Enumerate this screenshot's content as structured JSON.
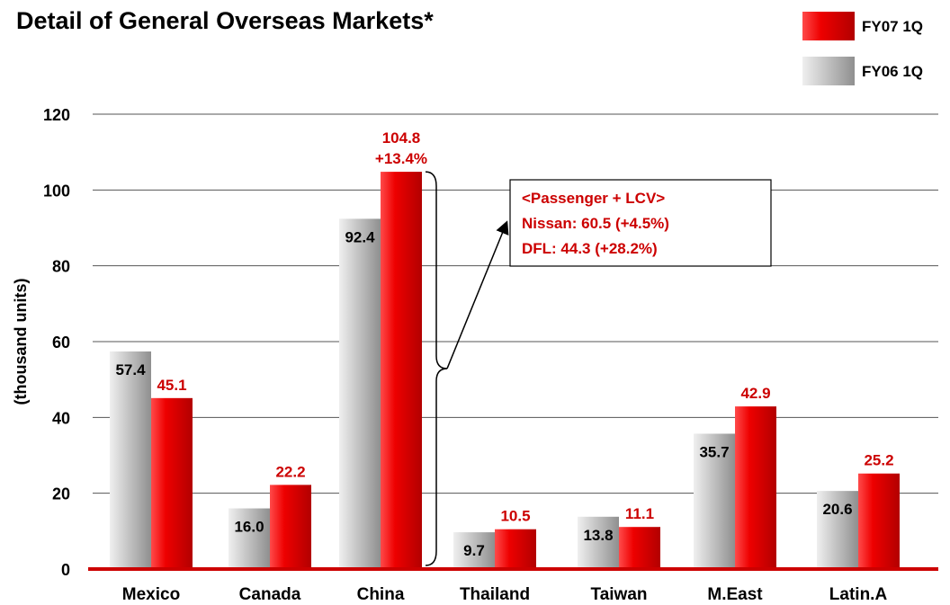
{
  "chart_data": {
    "type": "bar",
    "title": "Detail of General Overseas Markets*",
    "ylabel": "(thousand units)",
    "ylim": [
      0,
      120
    ],
    "yticks": [
      0,
      20,
      40,
      60,
      80,
      100,
      120
    ],
    "grid": true,
    "legend_position": "top-right",
    "categories": [
      "Mexico",
      "Canada",
      "China",
      "Thailand",
      "Taiwan",
      "M.East",
      "Latin.A"
    ],
    "series": [
      {
        "name": "FY06 1Q",
        "values": [
          57.4,
          16.0,
          92.4,
          9.7,
          13.8,
          35.7,
          20.6
        ],
        "labels": [
          "57.4",
          "16.0",
          "92.4",
          "9.7",
          "13.8",
          "35.7",
          "20.6"
        ],
        "color": "#b8b8b8"
      },
      {
        "name": "FY07 1Q",
        "values": [
          45.1,
          22.2,
          104.8,
          10.5,
          11.1,
          42.9,
          25.2
        ],
        "labels": [
          "45.1",
          "22.2",
          "104.8",
          "10.5",
          "11.1",
          "42.9",
          "25.2"
        ],
        "color": "#e00000"
      }
    ],
    "annotations": {
      "china_change": "+13.4%",
      "callout": [
        "<Passenger + LCV>",
        "Nissan: 60.5 (+4.5%)",
        "DFL: 44.3 (+28.2%)"
      ]
    },
    "colors": {
      "accent": "#e00000",
      "label_red": "#cc0000",
      "grid": "#555555"
    }
  }
}
